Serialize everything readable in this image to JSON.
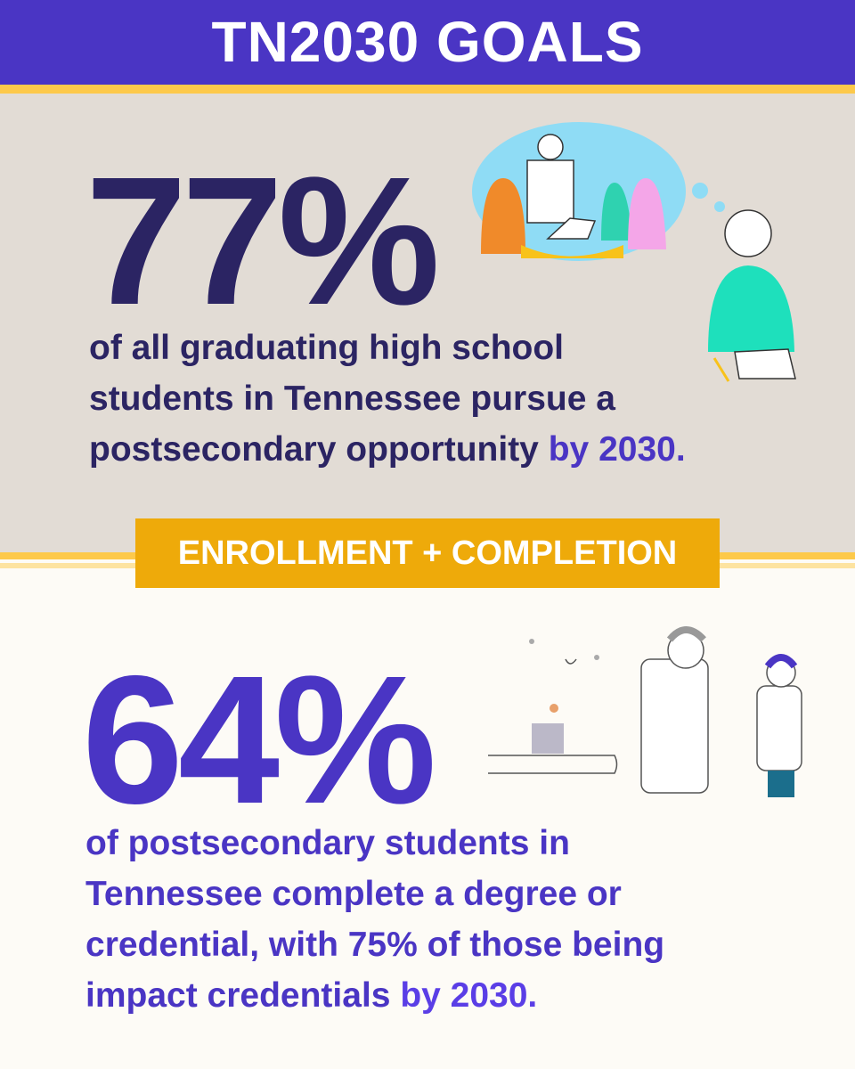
{
  "header": {
    "title": "TN2030 GOALS"
  },
  "goal1": {
    "stat": "77%",
    "lines": [
      "of all graduating high school",
      "students in Tennessee pursue a",
      "postsecondary opportunity"
    ],
    "highlight": "by 2030."
  },
  "banner": "ENROLLMENT + COMPLETION",
  "goal2": {
    "stat": "64%",
    "lines": [
      "of postsecondary students in",
      "Tennessee complete a degree or",
      "credential, with 75% of those being",
      "impact credentials"
    ],
    "highlight": "by 2030."
  }
}
